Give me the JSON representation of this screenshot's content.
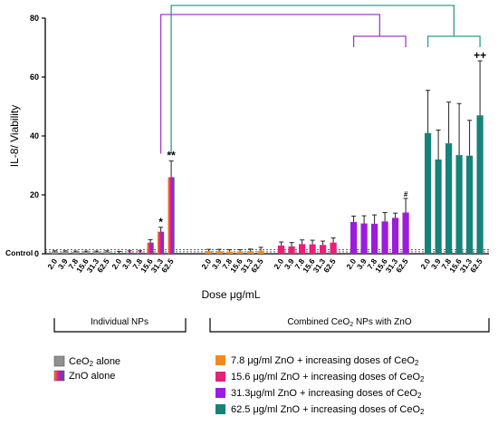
{
  "chart_data": {
    "type": "bar",
    "ylabel": "IL-8/ Viability",
    "xlabel": "Dose μg/mL",
    "ylim": [
      0,
      80
    ],
    "yticks": [
      0,
      20,
      40,
      60,
      80
    ],
    "control_label": "Control",
    "control_value": 1,
    "dose_labels": [
      "2.0",
      "3.9",
      "7.8",
      "15.6",
      "31.3",
      "62.5"
    ],
    "groups": [
      {
        "series": "ceo2",
        "color": "#909090",
        "values": [
          0.7,
          0.7,
          0.6,
          0.6,
          0.6,
          0.7
        ],
        "errors": [
          0.3,
          0.3,
          0.3,
          0.3,
          0.3,
          0.3
        ],
        "markers": [
          "",
          "",
          "",
          "",
          "",
          ""
        ]
      },
      {
        "series": "zno",
        "gradient": true,
        "values": [
          0.3,
          0.4,
          0.4,
          3.8,
          7.5,
          26
        ],
        "errors": [
          0.5,
          0.6,
          0.6,
          1.0,
          1.5,
          5.5
        ],
        "markers": [
          "",
          "",
          "",
          "",
          "*",
          "**"
        ]
      },
      {
        "series": "zno78",
        "color": "#f28b1e",
        "values": [
          0.9,
          0.9,
          0.8,
          0.8,
          0.9,
          1.0
        ],
        "errors": [
          0.6,
          0.6,
          0.6,
          0.6,
          0.7,
          1.2
        ],
        "markers": [
          "",
          "",
          "",
          "",
          "",
          ""
        ]
      },
      {
        "series": "zno156",
        "color": "#ec1e79",
        "values": [
          2.8,
          2.5,
          3.3,
          3.2,
          3.0,
          3.8
        ],
        "errors": [
          1.2,
          1.3,
          1.4,
          1.4,
          1.3,
          1.6
        ],
        "markers": [
          "",
          "",
          "",
          "",
          "",
          ""
        ]
      },
      {
        "series": "zno313",
        "color": "#9b1ddb",
        "values": [
          10.8,
          10.3,
          10.2,
          11.0,
          12.2,
          14.0
        ],
        "errors": [
          2.0,
          2.6,
          3.0,
          3.0,
          1.6,
          4.8
        ],
        "markers": [
          "",
          "",
          "",
          "",
          "",
          "#"
        ]
      },
      {
        "series": "zno625",
        "color": "#16837a",
        "values": [
          41,
          32,
          37.5,
          33.5,
          33.3,
          47
        ],
        "errors": [
          14.5,
          10,
          14,
          17.5,
          12,
          18.5
        ],
        "markers": [
          "",
          "",
          "",
          "",
          "",
          "++"
        ]
      }
    ],
    "brackets": [
      {
        "color": "#a23cc9",
        "from_group": 1,
        "to_group": 4,
        "level": "upper"
      },
      {
        "color": "#2a9d8f",
        "from_group": 1,
        "to_group": 5,
        "level": "top"
      },
      {
        "color": "#a23cc9",
        "from_group": 4,
        "to_group": 4,
        "level": "lower",
        "span": "group"
      },
      {
        "color": "#2a9d8f",
        "from_group": 5,
        "to_group": 5,
        "level": "lower",
        "span": "group"
      }
    ],
    "group_labels": {
      "individual": "Individual NPs",
      "combined_prefix": "Combined CeO",
      "combined_sub": "2",
      "combined_suffix": " NPs with ZnO"
    },
    "legend": {
      "ceo2": "CeO",
      "ceo2_sub": "2",
      "ceo2_suffix": " alone",
      "zno": "ZnO alone",
      "combined_prefix": " μg/ml ZnO + increasing doses of CeO",
      "combined_sub": "2",
      "zno78": "7.8 μg/ml ZnO + increasing doses of CeO",
      "zno156": "15.6 μg/ml ZnO + increasing doses of CeO",
      "zno313": "31.3μg/ml ZnO + increasing doses of CeO",
      "zno625": "62.5 μg/ml ZnO + increasing doses of CeO"
    }
  }
}
